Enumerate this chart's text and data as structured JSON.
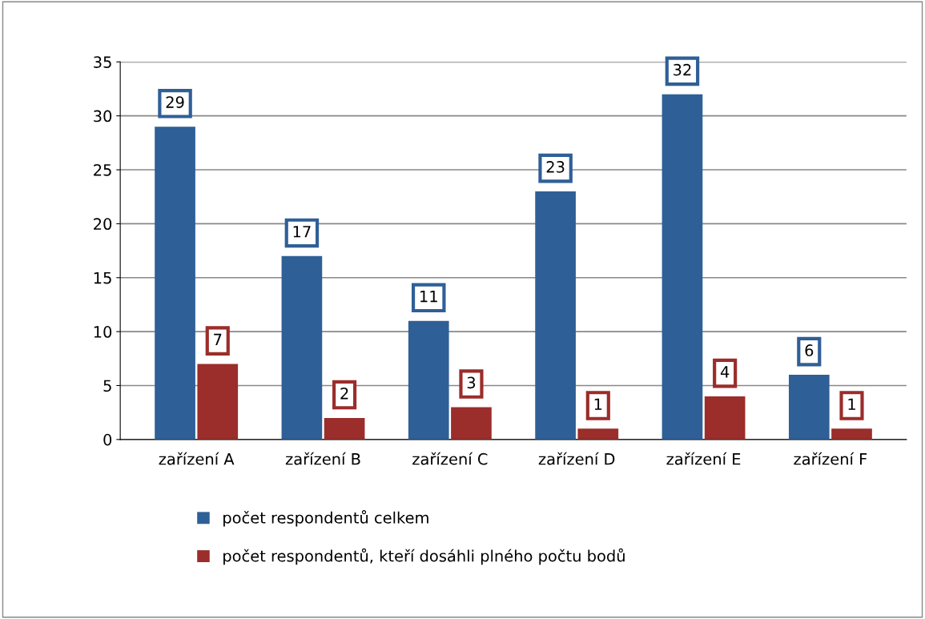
{
  "chart_data": {
    "type": "bar",
    "categories": [
      "zařízení A",
      "zařízení B",
      "zařízení C",
      "zařízení D",
      "zařízení E",
      "zařízení F"
    ],
    "series": [
      {
        "name": "počet respondentů celkem",
        "color": "#2f5f97",
        "values": [
          29,
          17,
          11,
          23,
          32,
          6
        ]
      },
      {
        "name": "počet respondentů, kteří dosáhli plného počtu bodů",
        "color": "#9b2d2a",
        "values": [
          7,
          2,
          3,
          1,
          4,
          1
        ]
      }
    ],
    "ylim": [
      0,
      35
    ],
    "yticks": [
      0,
      5,
      10,
      15,
      20,
      25,
      30,
      35
    ],
    "grid": "y",
    "legend": "bottom",
    "data_labels": true
  }
}
